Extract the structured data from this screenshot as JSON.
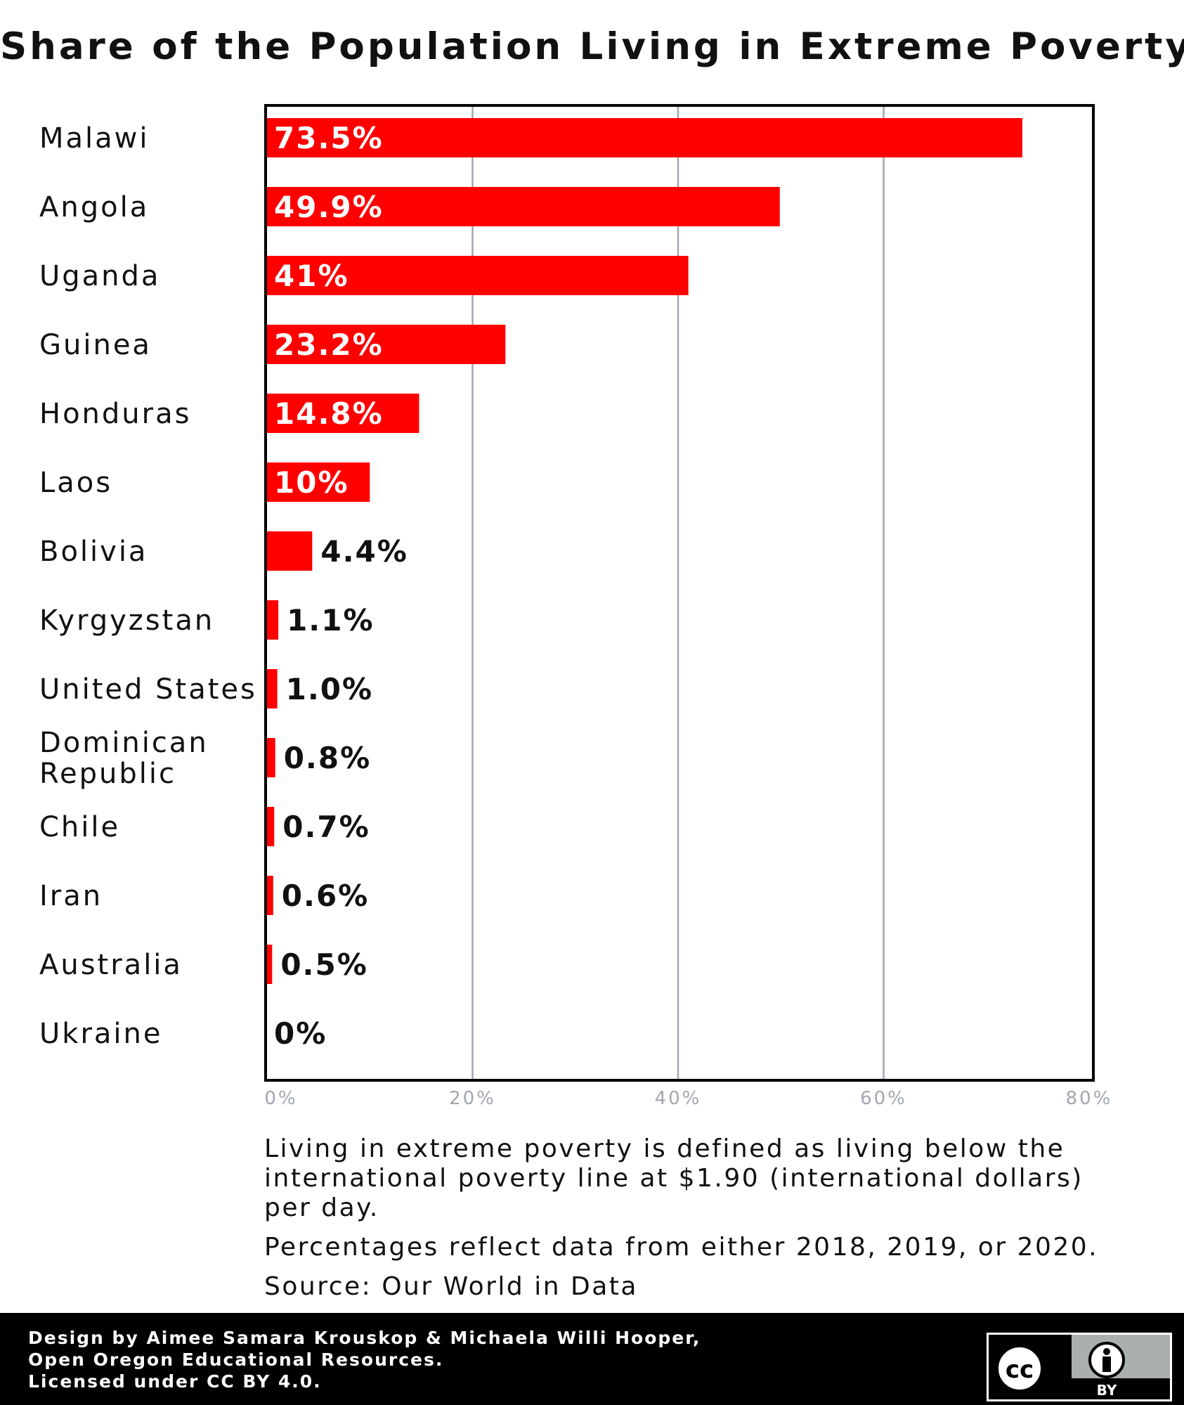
{
  "title": "Share of the Population Living in Extreme Poverty",
  "chart_data": {
    "type": "bar",
    "orientation": "horizontal",
    "title": "Share of the Population Living in Extreme Poverty",
    "xlabel": "",
    "ylabel": "",
    "xlim": [
      0,
      80
    ],
    "x_ticks": [
      "0%",
      "20%",
      "40%",
      "60%",
      "80%"
    ],
    "grid": true,
    "bar_color": "#ff0000",
    "categories": [
      [
        "Malawi"
      ],
      [
        "Angola"
      ],
      [
        "Uganda"
      ],
      [
        "Guinea"
      ],
      [
        "Honduras"
      ],
      [
        "Laos"
      ],
      [
        "Bolivia"
      ],
      [
        "Kyrgyzstan"
      ],
      [
        "United States"
      ],
      [
        "Dominican",
        "Republic"
      ],
      [
        "Chile"
      ],
      [
        "Iran"
      ],
      [
        "Australia"
      ],
      [
        "Ukraine"
      ]
    ],
    "values": [
      73.5,
      49.9,
      41,
      23.2,
      14.8,
      10,
      4.4,
      1.1,
      1.0,
      0.8,
      0.7,
      0.6,
      0.5,
      0
    ],
    "value_labels": [
      "73.5%",
      "49.9%",
      "41%",
      "23.2%",
      "14.8%",
      "10%",
      "4.4%",
      "1.1%",
      "1.0%",
      "0.8%",
      "0.7%",
      "0.6%",
      "0.5%",
      "0%"
    ]
  },
  "notes": {
    "definition": "Living in extreme poverty is defined as living below the international poverty line at $1.90 (international dollars) per day.",
    "years": "Percentages reflect data from either 2018, 2019, or 2020.",
    "source": "Source: Our World in Data"
  },
  "footer": {
    "credit_line1": "Design by Aimee Samara Krouskop & Michaela Willi Hooper,",
    "credit_line2": "Open Oregon Educational Resources.",
    "credit_line3": "Licensed under CC BY 4.0.",
    "license_badge_text": "cc",
    "license_badge_by": "BY"
  }
}
